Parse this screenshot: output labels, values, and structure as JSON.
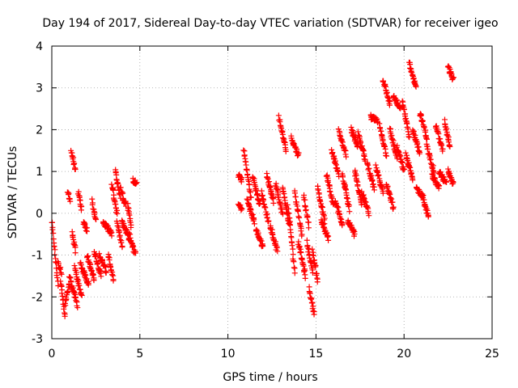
{
  "chart_data": {
    "type": "scatter",
    "title": "Day 194 of 2017, Sidereal Day-to-day VTEC variation (SDTVAR) for receiver igeo",
    "xlabel": "GPS time / hours",
    "ylabel": "SDTVAR / TECUs",
    "xlim": [
      0,
      25
    ],
    "ylim": [
      -3,
      4
    ],
    "xticks": [
      0,
      5,
      10,
      15,
      20,
      25
    ],
    "yticks": [
      -3,
      -2,
      -1,
      0,
      1,
      2,
      3,
      4
    ],
    "grid": true,
    "marker": "+",
    "color": "#ff0000",
    "series": [
      {
        "name": "SDTVAR",
        "segments": [
          {
            "x0": 0.0,
            "x1": 0.35,
            "y0": -0.2,
            "y1": -1.7
          },
          {
            "x0": 0.35,
            "x1": 0.55,
            "y0": -1.2,
            "y1": -1.4
          },
          {
            "x0": 0.5,
            "x1": 0.75,
            "y0": -1.6,
            "y1": -2.5
          },
          {
            "x0": 0.75,
            "x1": 1.0,
            "y0": -2.2,
            "y1": -1.7
          },
          {
            "x0": 0.9,
            "x1": 1.05,
            "y0": 0.5,
            "y1": 0.3
          },
          {
            "x0": 1.0,
            "x1": 1.45,
            "y0": -1.5,
            "y1": -2.2
          },
          {
            "x0": 1.1,
            "x1": 1.35,
            "y0": 1.5,
            "y1": 1.0
          },
          {
            "x0": 1.15,
            "x1": 1.35,
            "y0": -0.5,
            "y1": -0.9
          },
          {
            "x0": 1.3,
            "x1": 1.7,
            "y0": -1.3,
            "y1": -2.0
          },
          {
            "x0": 1.5,
            "x1": 1.7,
            "y0": 0.5,
            "y1": 0.1
          },
          {
            "x0": 1.6,
            "x1": 2.1,
            "y0": -1.2,
            "y1": -1.7
          },
          {
            "x0": 1.8,
            "x1": 2.0,
            "y0": -0.2,
            "y1": -0.4
          },
          {
            "x0": 2.0,
            "x1": 2.4,
            "y0": -1.0,
            "y1": -1.6
          },
          {
            "x0": 2.3,
            "x1": 2.5,
            "y0": 0.3,
            "y1": -0.2
          },
          {
            "x0": 2.4,
            "x1": 2.8,
            "y0": -0.9,
            "y1": -1.5
          },
          {
            "x0": 2.7,
            "x1": 3.1,
            "y0": -1.0,
            "y1": -1.4
          },
          {
            "x0": 2.9,
            "x1": 3.4,
            "y0": -0.2,
            "y1": -0.5
          },
          {
            "x0": 3.2,
            "x1": 3.5,
            "y0": -1.0,
            "y1": -1.6
          },
          {
            "x0": 3.4,
            "x1": 3.7,
            "y0": 0.7,
            "y1": 0.0
          },
          {
            "x0": 3.6,
            "x1": 3.9,
            "y0": 1.0,
            "y1": 0.4
          },
          {
            "x0": 3.7,
            "x1": 4.0,
            "y0": -0.2,
            "y1": -0.8
          },
          {
            "x0": 3.9,
            "x1": 4.2,
            "y0": 0.6,
            "y1": 0.2
          },
          {
            "x0": 4.0,
            "x1": 4.4,
            "y0": -0.2,
            "y1": -0.6
          },
          {
            "x0": 4.3,
            "x1": 4.5,
            "y0": 0.2,
            "y1": -0.3
          },
          {
            "x0": 4.4,
            "x1": 4.75,
            "y0": -0.5,
            "y1": -1.0
          },
          {
            "x0": 4.6,
            "x1": 4.8,
            "y0": 0.8,
            "y1": 0.7
          },
          {
            "x0": 10.6,
            "x1": 10.8,
            "y0": 0.9,
            "y1": 0.8
          },
          {
            "x0": 10.6,
            "x1": 10.8,
            "y0": 0.2,
            "y1": 0.1
          },
          {
            "x0": 10.9,
            "x1": 11.3,
            "y0": 1.5,
            "y1": 0.4
          },
          {
            "x0": 11.1,
            "x1": 11.5,
            "y0": 0.3,
            "y1": -0.2
          },
          {
            "x0": 11.4,
            "x1": 11.8,
            "y0": 0.9,
            "y1": 0.2
          },
          {
            "x0": 11.6,
            "x1": 12.0,
            "y0": -0.4,
            "y1": -0.8
          },
          {
            "x0": 11.9,
            "x1": 12.3,
            "y0": 0.5,
            "y1": -0.2
          },
          {
            "x0": 12.2,
            "x1": 12.6,
            "y0": 0.9,
            "y1": 0.3
          },
          {
            "x0": 12.4,
            "x1": 12.8,
            "y0": -0.3,
            "y1": -0.9
          },
          {
            "x0": 12.7,
            "x1": 13.1,
            "y0": 0.7,
            "y1": 0.0
          },
          {
            "x0": 12.9,
            "x1": 13.3,
            "y0": 2.3,
            "y1": 1.5
          },
          {
            "x0": 13.1,
            "x1": 13.5,
            "y0": 0.6,
            "y1": -0.3
          },
          {
            "x0": 13.4,
            "x1": 13.8,
            "y0": 0.2,
            "y1": -1.4
          },
          {
            "x0": 13.6,
            "x1": 14.0,
            "y0": 1.8,
            "y1": 1.4
          },
          {
            "x0": 13.8,
            "x1": 14.2,
            "y0": 0.5,
            "y1": -0.5
          },
          {
            "x0": 14.0,
            "x1": 14.4,
            "y0": -0.7,
            "y1": -1.5
          },
          {
            "x0": 14.3,
            "x1": 14.6,
            "y0": 0.4,
            "y1": -0.3
          },
          {
            "x0": 14.5,
            "x1": 14.8,
            "y0": -0.7,
            "y1": -1.4
          },
          {
            "x0": 14.6,
            "x1": 14.9,
            "y0": -1.8,
            "y1": -2.4
          },
          {
            "x0": 14.8,
            "x1": 15.1,
            "y0": -0.9,
            "y1": -1.6
          },
          {
            "x0": 15.1,
            "x1": 15.5,
            "y0": 0.6,
            "y1": -0.2
          },
          {
            "x0": 15.3,
            "x1": 15.7,
            "y0": -0.2,
            "y1": -0.6
          },
          {
            "x0": 15.6,
            "x1": 16.0,
            "y0": 0.9,
            "y1": 0.2
          },
          {
            "x0": 15.9,
            "x1": 16.3,
            "y0": 1.5,
            "y1": 0.9
          },
          {
            "x0": 16.1,
            "x1": 16.5,
            "y0": 0.3,
            "y1": -0.3
          },
          {
            "x0": 16.3,
            "x1": 16.7,
            "y0": 2.0,
            "y1": 1.4
          },
          {
            "x0": 16.5,
            "x1": 16.9,
            "y0": 0.9,
            "y1": 0.1
          },
          {
            "x0": 16.8,
            "x1": 17.2,
            "y0": -0.2,
            "y1": -0.5
          },
          {
            "x0": 17.0,
            "x1": 17.4,
            "y0": 2.0,
            "y1": 1.6
          },
          {
            "x0": 17.2,
            "x1": 17.6,
            "y0": 1.0,
            "y1": 0.2
          },
          {
            "x0": 17.4,
            "x1": 17.8,
            "y0": 1.9,
            "y1": 1.3
          },
          {
            "x0": 17.6,
            "x1": 18.0,
            "y0": 0.5,
            "y1": 0.0
          },
          {
            "x0": 17.9,
            "x1": 18.3,
            "y0": 1.2,
            "y1": 0.6
          },
          {
            "x0": 18.1,
            "x1": 18.5,
            "y0": 2.3,
            "y1": 2.2
          },
          {
            "x0": 18.4,
            "x1": 18.8,
            "y0": 1.1,
            "y1": 0.5
          },
          {
            "x0": 18.6,
            "x1": 19.0,
            "y0": 2.1,
            "y1": 1.4
          },
          {
            "x0": 18.8,
            "x1": 19.2,
            "y0": 3.2,
            "y1": 2.6
          },
          {
            "x0": 19.0,
            "x1": 19.4,
            "y0": 0.7,
            "y1": 0.1
          },
          {
            "x0": 19.2,
            "x1": 19.6,
            "y0": 2.0,
            "y1": 1.3
          },
          {
            "x0": 19.4,
            "x1": 19.8,
            "y0": 2.8,
            "y1": 2.5
          },
          {
            "x0": 19.6,
            "x1": 20.0,
            "y0": 1.6,
            "y1": 1.0
          },
          {
            "x0": 19.9,
            "x1": 20.3,
            "y0": 2.7,
            "y1": 1.8
          },
          {
            "x0": 20.1,
            "x1": 20.5,
            "y0": 1.4,
            "y1": 0.8
          },
          {
            "x0": 20.3,
            "x1": 20.7,
            "y0": 3.6,
            "y1": 3.0
          },
          {
            "x0": 20.5,
            "x1": 20.9,
            "y0": 2.0,
            "y1": 1.4
          },
          {
            "x0": 20.7,
            "x1": 21.1,
            "y0": 0.6,
            "y1": 0.4
          },
          {
            "x0": 20.9,
            "x1": 21.3,
            "y0": 2.4,
            "y1": 1.8
          },
          {
            "x0": 21.1,
            "x1": 21.4,
            "y0": 0.3,
            "y1": -0.1
          },
          {
            "x0": 21.3,
            "x1": 21.7,
            "y0": 1.6,
            "y1": 1.0
          },
          {
            "x0": 21.6,
            "x1": 22.0,
            "y0": 0.9,
            "y1": 0.6
          },
          {
            "x0": 21.8,
            "x1": 22.2,
            "y0": 2.1,
            "y1": 1.5
          },
          {
            "x0": 22.0,
            "x1": 22.4,
            "y0": 1.0,
            "y1": 0.7
          },
          {
            "x0": 22.3,
            "x1": 22.6,
            "y0": 2.2,
            "y1": 1.6
          },
          {
            "x0": 22.5,
            "x1": 22.8,
            "y0": 3.5,
            "y1": 3.2
          },
          {
            "x0": 22.5,
            "x1": 22.8,
            "y0": 1.0,
            "y1": 0.7
          }
        ]
      }
    ]
  }
}
